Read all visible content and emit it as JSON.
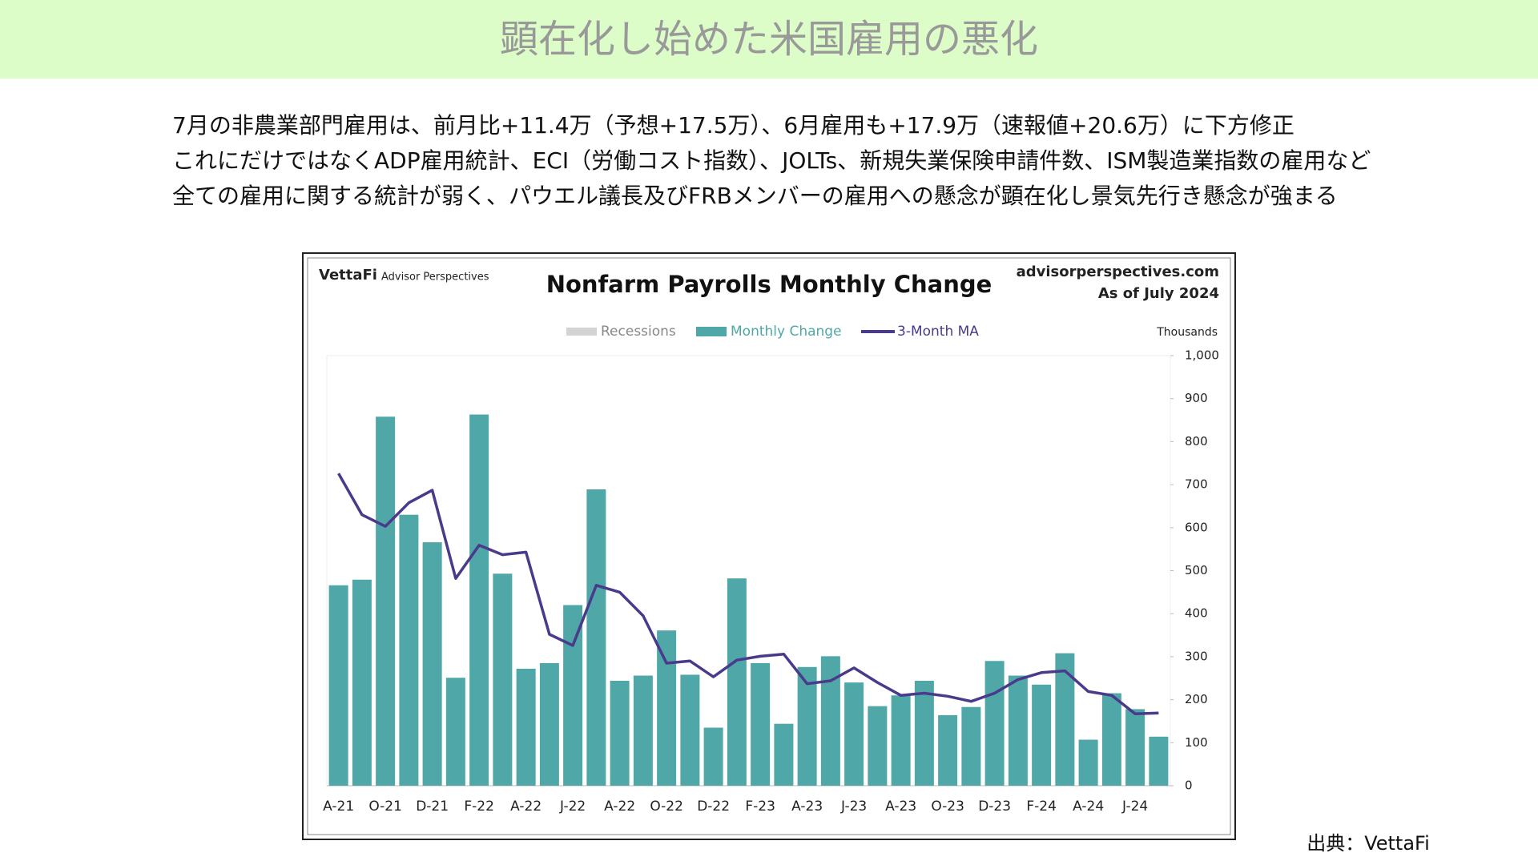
{
  "header": {
    "title": "顕在化し始めた米国雇用の悪化"
  },
  "body": {
    "lines": [
      "7月の非農業部門雇用は、前月比+11.4万（予想+17.5万）、6月雇用も+17.9万（速報値+20.6万）に下方修正",
      "これにだけではなくADP雇用統計、ECI（労働コスト指数）、JOLTs、新規失業保険申請件数、ISM製造業指数の雇用など",
      "全ての雇用に関する統計が弱く、パウエル議長及びFRBメンバーの雇用への懸念が顕在化し景気先行き懸念が強まる"
    ]
  },
  "source": "出典：VettaFi",
  "chart_data": {
    "type": "bar_line",
    "brand": "VettaFi",
    "brand_sub": "Advisor Perspectives",
    "title": "Nonfarm Payrolls Monthly Change",
    "site": "advisorperspectives.com",
    "as_of": "As of July 2024",
    "y_unit": "Thousands",
    "recessions": {
      "name": "Recessions",
      "color": "#d3d3d3"
    },
    "categories": [
      "A-21",
      null,
      "O-21",
      null,
      "D-21",
      null,
      "F-22",
      null,
      "A-22",
      null,
      "J-22",
      null,
      "A-22",
      null,
      "O-22",
      null,
      "D-22",
      null,
      "F-23",
      null,
      "A-23",
      null,
      "J-23",
      null,
      "A-23",
      null,
      "O-23",
      null,
      "D-23",
      null,
      "F-24",
      null,
      "A-24",
      null,
      "J-24",
      null
    ],
    "series": [
      {
        "name": "Monthly Change",
        "color": "#4fa7a7",
        "kind": "bar",
        "values": [
          466,
          479,
          858,
          630,
          566,
          251,
          863,
          493,
          272,
          285,
          420,
          689,
          244,
          256,
          361,
          258,
          135,
          482,
          285,
          144,
          276,
          301,
          240,
          185,
          210,
          244,
          164,
          183,
          290,
          256,
          235,
          308,
          107,
          215,
          178,
          114
        ]
      },
      {
        "name": "3-Month MA",
        "color": "#4b3a8c",
        "kind": "line",
        "values": [
          726,
          630,
          603,
          658,
          687,
          482,
          559,
          537,
          543,
          352,
          326,
          466,
          450,
          395,
          285,
          290,
          253,
          292,
          301,
          306,
          237,
          244,
          274,
          240,
          210,
          215,
          208,
          196,
          215,
          247,
          263,
          267,
          219,
          210,
          167,
          169
        ]
      }
    ],
    "ylim": [
      0,
      1000
    ],
    "yticks": [
      0,
      100,
      200,
      300,
      400,
      500,
      600,
      700,
      800,
      900,
      {
        "value": 1000,
        "label": "1,000"
      }
    ],
    "grid": false
  }
}
